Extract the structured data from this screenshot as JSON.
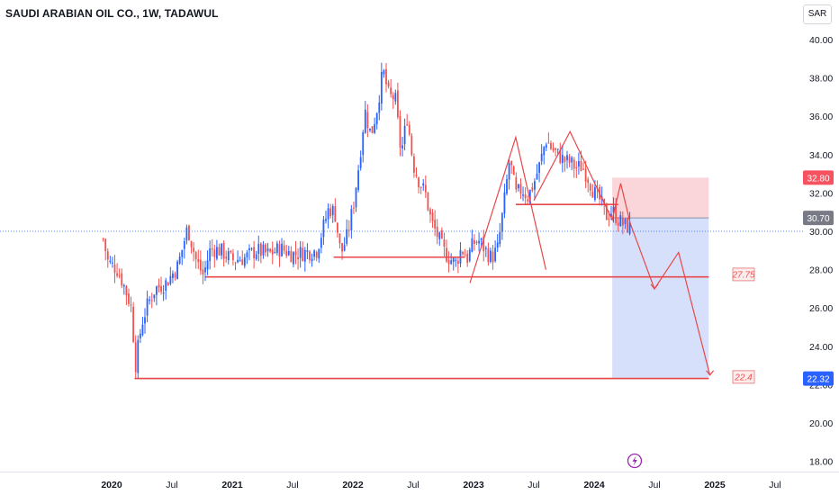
{
  "header": {
    "title": "SAUDI ARABIAN OIL CO., 1W, TADAWUL",
    "currency_button": "SAR"
  },
  "chart_data": {
    "type": "candlestick",
    "title": "SAUDI ARABIAN OIL CO., 1W, TADAWUL",
    "ylim": [
      17.5,
      40.5
    ],
    "y_ticks": [
      "18.00",
      "20.00",
      "22.00",
      "24.00",
      "26.00",
      "28.00",
      "30.00",
      "32.00",
      "34.00",
      "36.00",
      "38.00",
      "40.00"
    ],
    "x_ticks": [
      {
        "label": "2020",
        "t": 2020.0,
        "bold": true
      },
      {
        "label": "Jul",
        "t": 2020.5,
        "bold": false
      },
      {
        "label": "2021",
        "t": 2021.0,
        "bold": true
      },
      {
        "label": "Jul",
        "t": 2021.5,
        "bold": false
      },
      {
        "label": "2022",
        "t": 2022.0,
        "bold": true
      },
      {
        "label": "Jul",
        "t": 2022.5,
        "bold": false
      },
      {
        "label": "2023",
        "t": 2023.0,
        "bold": true
      },
      {
        "label": "Jul",
        "t": 2023.5,
        "bold": false
      },
      {
        "label": "2024",
        "t": 2024.0,
        "bold": true
      },
      {
        "label": "Jul",
        "t": 2024.5,
        "bold": false
      },
      {
        "label": "2025",
        "t": 2025.0,
        "bold": true
      },
      {
        "label": "Jul",
        "t": 2025.5,
        "bold": false
      }
    ],
    "close_path": [
      [
        2019.93,
        29.6
      ],
      [
        2019.97,
        28.4
      ],
      [
        2020.05,
        28.0
      ],
      [
        2020.1,
        27.2
      ],
      [
        2020.16,
        26.1
      ],
      [
        2020.2,
        23.0
      ],
      [
        2020.22,
        24.0
      ],
      [
        2020.25,
        25.2
      ],
      [
        2020.3,
        26.2
      ],
      [
        2020.36,
        27.0
      ],
      [
        2020.45,
        27.3
      ],
      [
        2020.55,
        28.2
      ],
      [
        2020.63,
        30.2
      ],
      [
        2020.7,
        28.5
      ],
      [
        2020.76,
        27.7
      ],
      [
        2020.82,
        29.1
      ],
      [
        2020.9,
        29.0
      ],
      [
        2021.0,
        28.5
      ],
      [
        2021.1,
        28.6
      ],
      [
        2021.2,
        29.0
      ],
      [
        2021.3,
        28.8
      ],
      [
        2021.4,
        29.1
      ],
      [
        2021.5,
        28.8
      ],
      [
        2021.6,
        28.9
      ],
      [
        2021.7,
        29.0
      ],
      [
        2021.8,
        31.2
      ],
      [
        2021.85,
        31.0
      ],
      [
        2021.9,
        28.8
      ],
      [
        2021.95,
        29.7
      ],
      [
        2022.0,
        31.2
      ],
      [
        2022.05,
        33.5
      ],
      [
        2022.1,
        36.3
      ],
      [
        2022.15,
        35.0
      ],
      [
        2022.2,
        36.4
      ],
      [
        2022.25,
        38.4
      ],
      [
        2022.3,
        37.0
      ],
      [
        2022.35,
        37.0
      ],
      [
        2022.4,
        34.0
      ],
      [
        2022.45,
        36.0
      ],
      [
        2022.5,
        33.5
      ],
      [
        2022.55,
        32.6
      ],
      [
        2022.6,
        32.0
      ],
      [
        2022.65,
        30.5
      ],
      [
        2022.7,
        29.8
      ],
      [
        2022.75,
        29.0
      ],
      [
        2022.8,
        28.6
      ],
      [
        2022.85,
        28.3
      ],
      [
        2022.9,
        29.1
      ],
      [
        2022.95,
        28.6
      ],
      [
        2023.0,
        29.4
      ],
      [
        2023.05,
        29.5
      ],
      [
        2023.1,
        29.0
      ],
      [
        2023.15,
        28.6
      ],
      [
        2023.2,
        29.1
      ],
      [
        2023.25,
        31.3
      ],
      [
        2023.3,
        33.8
      ],
      [
        2023.35,
        31.9
      ],
      [
        2023.4,
        32.2
      ],
      [
        2023.45,
        31.8
      ],
      [
        2023.5,
        32.5
      ],
      [
        2023.55,
        33.5
      ],
      [
        2023.6,
        34.8
      ],
      [
        2023.65,
        34.3
      ],
      [
        2023.7,
        34.0
      ],
      [
        2023.75,
        33.7
      ],
      [
        2023.8,
        33.6
      ],
      [
        2023.85,
        33.3
      ],
      [
        2023.9,
        33.4
      ],
      [
        2023.95,
        32.8
      ],
      [
        2024.0,
        32.0
      ],
      [
        2024.05,
        31.6
      ],
      [
        2024.1,
        30.8
      ],
      [
        2024.15,
        31.1
      ],
      [
        2024.2,
        30.6
      ],
      [
        2024.25,
        30.3
      ],
      [
        2024.3,
        30.2
      ]
    ],
    "last_price_line": 30.0,
    "price_labels": [
      {
        "text": "32.80",
        "value": 32.8,
        "style": "stop"
      },
      {
        "text": "30.70",
        "value": 30.7,
        "style": "entry"
      },
      {
        "text": "22.32",
        "value": 22.32,
        "style": "target"
      }
    ],
    "support_lines": [
      {
        "y": 27.62,
        "x_start": 2020.78,
        "x_end": 2024.95
      },
      {
        "y": 22.32,
        "x_start": 2020.19,
        "x_end": 2024.95
      },
      {
        "y": 28.65,
        "x_start": 2021.84,
        "x_end": 2022.93
      },
      {
        "y": 31.4,
        "x_start": 2023.35,
        "x_end": 2024.2
      }
    ],
    "annotations": [
      {
        "text": "27.75",
        "value": 27.75
      },
      {
        "text": "22.4",
        "value": 22.4
      }
    ],
    "position": {
      "x_start": 2024.15,
      "x_end": 2024.95,
      "stop": 32.8,
      "entry": 30.7,
      "target": 22.32
    },
    "wave_lines": [
      {
        "points": [
          [
            2022.97,
            27.3
          ],
          [
            2023.35,
            34.9
          ],
          [
            2023.6,
            28.0
          ]
        ]
      },
      {
        "points": [
          [
            2023.5,
            31.6
          ],
          [
            2023.8,
            35.2
          ],
          [
            2024.15,
            30.6
          ],
          [
            2024.22,
            32.5
          ],
          [
            2024.3,
            30.4
          ],
          [
            2024.5,
            27.0
          ],
          [
            2024.7,
            28.9
          ],
          [
            2024.96,
            22.5
          ]
        ]
      }
    ],
    "marker_icon": "lightning-icon",
    "colors": {
      "up": "#2962ff",
      "down": "#ef5350",
      "line_red": "#e84749",
      "stop_zone": "#f9cfd3",
      "target_zone": "#d2ddfb",
      "marker": "#9c27b0"
    }
  }
}
